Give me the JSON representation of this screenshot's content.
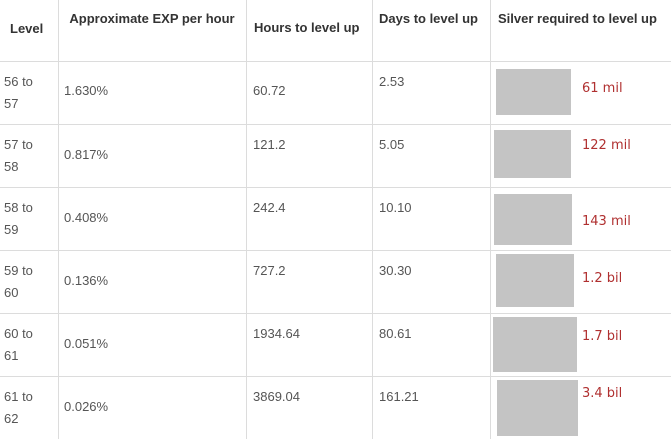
{
  "table": {
    "headers": {
      "level": "Level",
      "exp": "Approximate EXP per hour",
      "hours": "Hours to level up",
      "days": "Days to level up",
      "silver": "Silver required to level up"
    },
    "swatch_color": "#c4c4c4",
    "silver_text_color": "#b03030",
    "rows": [
      {
        "level_a": "56 to",
        "level_b": "57",
        "exp": "1.630%",
        "hours": "60.72",
        "days": "2.53",
        "silver": "61 mil"
      },
      {
        "level_a": "57 to",
        "level_b": "58",
        "exp": "0.817%",
        "hours": "121.2",
        "days": "5.05",
        "silver": "122 mil"
      },
      {
        "level_a": "58 to",
        "level_b": "59",
        "exp": "0.408%",
        "hours": "242.4",
        "days": "10.10",
        "silver": "143 mil"
      },
      {
        "level_a": "59 to",
        "level_b": "60",
        "exp": "0.136%",
        "hours": "727.2",
        "days": "30.30",
        "silver": "1.2 bil"
      },
      {
        "level_a": "60 to",
        "level_b": "61",
        "exp": "0.051%",
        "hours": "1934.64",
        "days": "80.61",
        "silver": "1.7 bil"
      },
      {
        "level_a": "61 to",
        "level_b": "62",
        "exp": "0.026%",
        "hours": "3869.04",
        "days": "161.21",
        "silver": "3.4 bil"
      }
    ]
  }
}
